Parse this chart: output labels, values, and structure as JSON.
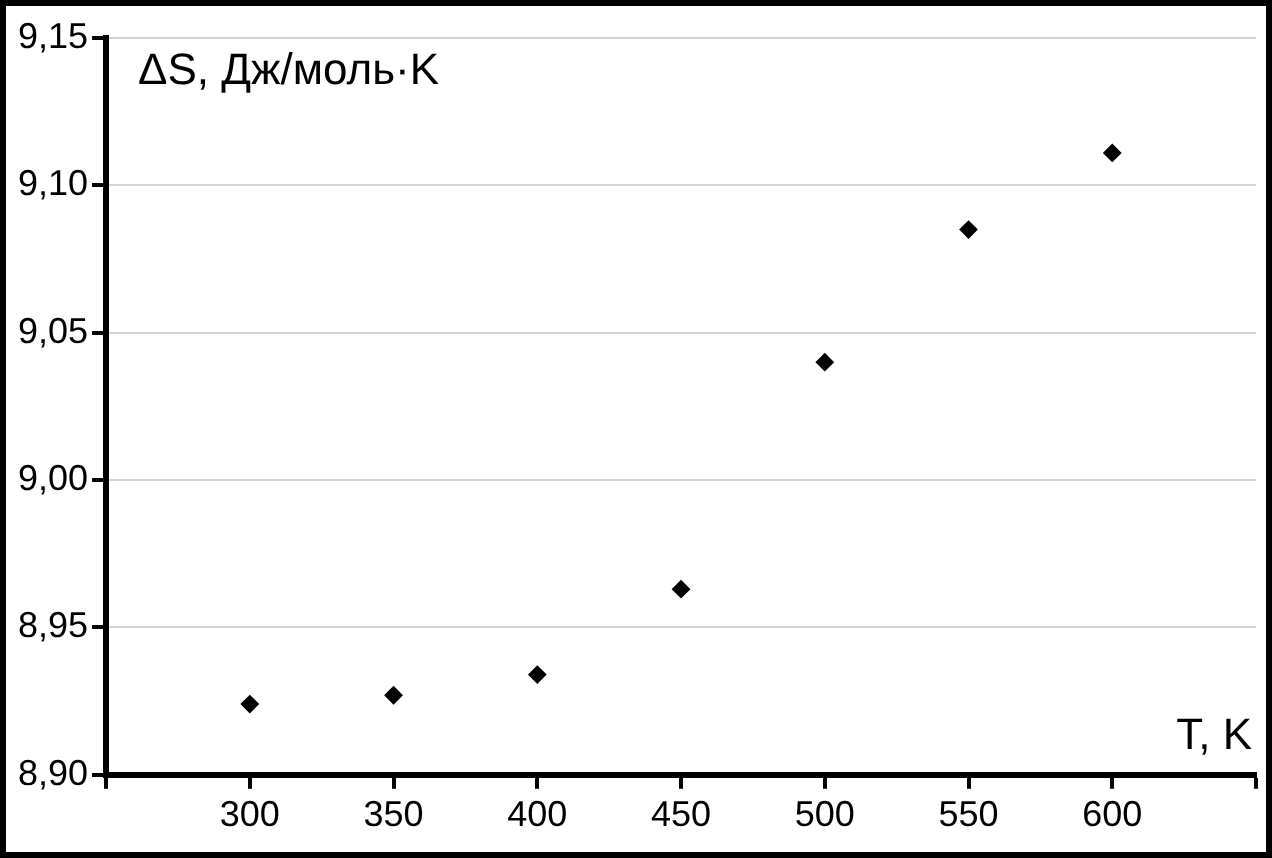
{
  "chart_data": {
    "type": "scatter",
    "xlabel": "T, K",
    "ylabel": "ΔS, Дж/моль·K",
    "x": [
      300,
      350,
      400,
      450,
      500,
      550,
      600
    ],
    "series": [
      {
        "color": "#000000",
        "values": [
          8.924,
          8.927,
          8.934,
          8.963,
          9.04,
          9.085,
          9.111
        ]
      }
    ],
    "xlim": [
      250,
      650
    ],
    "xticks": [
      {
        "value": 250,
        "label": null
      },
      300,
      350,
      400,
      450,
      500,
      550,
      600,
      {
        "value": 650,
        "label": null
      }
    ],
    "ylim": [
      8.9,
      9.15
    ],
    "yticks": [
      {
        "value": 8.9,
        "label": "8,90"
      },
      {
        "value": 8.95,
        "label": "8,95"
      },
      {
        "value": 9.0,
        "label": "9,00"
      },
      {
        "value": 9.05,
        "label": "9,05"
      },
      {
        "value": 9.1,
        "label": "9,10"
      },
      {
        "value": 9.15,
        "label": "9,15"
      }
    ],
    "grid": "y",
    "legend": false,
    "marker": "diamond"
  }
}
